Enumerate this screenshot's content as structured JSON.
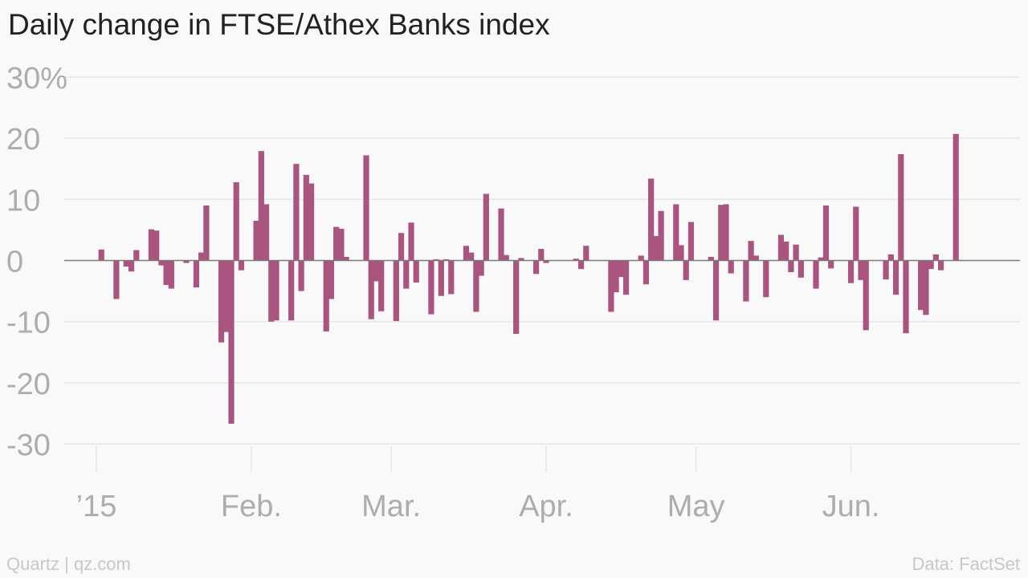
{
  "title": "Daily change in FTSE/Athex Banks index",
  "footer": {
    "credit": "Quartz | qz.com",
    "source": "Data: FactSet"
  },
  "colors": {
    "bar": "#a9557f",
    "grid": "#e6e6e6",
    "zero_line": "#7a7a7a",
    "tick_text": "#adadad",
    "background": "#f9f9f9"
  },
  "chart_data": {
    "type": "bar",
    "title": "Daily change in FTSE/Athex Banks index",
    "xlabel": "",
    "ylabel": "",
    "ylim": [
      -30,
      30
    ],
    "y_ticks": [
      {
        "value": 30,
        "label": "30%"
      },
      {
        "value": 20,
        "label": "20"
      },
      {
        "value": 10,
        "label": "10"
      },
      {
        "value": 0,
        "label": "0"
      },
      {
        "value": -10,
        "label": "-10"
      },
      {
        "value": -20,
        "label": "-20"
      },
      {
        "value": -30,
        "label": "-30"
      }
    ],
    "x_range": [
      "2015-01-01",
      "2015-06-30"
    ],
    "x_ticks": [
      {
        "date": "2015-01-01",
        "label": "’15"
      },
      {
        "date": "2015-02-01",
        "label": "Feb."
      },
      {
        "date": "2015-03-01",
        "label": "Mar."
      },
      {
        "date": "2015-04-01",
        "label": "Apr."
      },
      {
        "date": "2015-05-01",
        "label": "May"
      },
      {
        "date": "2015-06-01",
        "label": "Jun."
      }
    ],
    "grid": true,
    "points": [
      {
        "date": "2015-01-02",
        "value": 1.8
      },
      {
        "date": "2015-01-05",
        "value": -6.3
      },
      {
        "date": "2015-01-07",
        "value": -1.0
      },
      {
        "date": "2015-01-08",
        "value": -1.8
      },
      {
        "date": "2015-01-09",
        "value": 1.7
      },
      {
        "date": "2015-01-12",
        "value": 5.1
      },
      {
        "date": "2015-01-13",
        "value": 4.9
      },
      {
        "date": "2015-01-14",
        "value": -0.8
      },
      {
        "date": "2015-01-15",
        "value": -4.0
      },
      {
        "date": "2015-01-16",
        "value": -4.6
      },
      {
        "date": "2015-01-19",
        "value": -0.4
      },
      {
        "date": "2015-01-21",
        "value": -4.4
      },
      {
        "date": "2015-01-22",
        "value": 1.3
      },
      {
        "date": "2015-01-23",
        "value": 9.0
      },
      {
        "date": "2015-01-26",
        "value": -13.4
      },
      {
        "date": "2015-01-27",
        "value": -11.7
      },
      {
        "date": "2015-01-28",
        "value": -26.7
      },
      {
        "date": "2015-01-29",
        "value": 12.8
      },
      {
        "date": "2015-01-30",
        "value": -1.6
      },
      {
        "date": "2015-02-02",
        "value": 6.5
      },
      {
        "date": "2015-02-03",
        "value": 17.9
      },
      {
        "date": "2015-02-04",
        "value": 9.2
      },
      {
        "date": "2015-02-05",
        "value": -10.0
      },
      {
        "date": "2015-02-06",
        "value": -9.8
      },
      {
        "date": "2015-02-09",
        "value": -9.8
      },
      {
        "date": "2015-02-10",
        "value": 15.8
      },
      {
        "date": "2015-02-11",
        "value": -5.0
      },
      {
        "date": "2015-02-12",
        "value": 14.0
      },
      {
        "date": "2015-02-13",
        "value": 12.6
      },
      {
        "date": "2015-02-16",
        "value": -11.6
      },
      {
        "date": "2015-02-17",
        "value": -6.3
      },
      {
        "date": "2015-02-18",
        "value": 5.5
      },
      {
        "date": "2015-02-19",
        "value": 5.2
      },
      {
        "date": "2015-02-20",
        "value": 0.6
      },
      {
        "date": "2015-02-24",
        "value": 17.2
      },
      {
        "date": "2015-02-25",
        "value": -9.6
      },
      {
        "date": "2015-02-26",
        "value": -3.4
      },
      {
        "date": "2015-02-27",
        "value": -8.3
      },
      {
        "date": "2015-03-02",
        "value": -9.9
      },
      {
        "date": "2015-03-03",
        "value": 4.5
      },
      {
        "date": "2015-03-04",
        "value": -4.6
      },
      {
        "date": "2015-03-05",
        "value": 6.2
      },
      {
        "date": "2015-03-06",
        "value": -3.6
      },
      {
        "date": "2015-03-09",
        "value": -8.8
      },
      {
        "date": "2015-03-10",
        "value": 0.2
      },
      {
        "date": "2015-03-11",
        "value": -5.8
      },
      {
        "date": "2015-03-12",
        "value": 0.2
      },
      {
        "date": "2015-03-13",
        "value": -5.5
      },
      {
        "date": "2015-03-16",
        "value": 2.4
      },
      {
        "date": "2015-03-17",
        "value": 1.3
      },
      {
        "date": "2015-03-18",
        "value": -8.4
      },
      {
        "date": "2015-03-19",
        "value": -2.5
      },
      {
        "date": "2015-03-20",
        "value": 10.9
      },
      {
        "date": "2015-03-23",
        "value": 8.5
      },
      {
        "date": "2015-03-24",
        "value": 0.9
      },
      {
        "date": "2015-03-26",
        "value": -12.0
      },
      {
        "date": "2015-03-27",
        "value": 0.4
      },
      {
        "date": "2015-03-30",
        "value": -2.2
      },
      {
        "date": "2015-03-31",
        "value": 1.9
      },
      {
        "date": "2015-04-01",
        "value": -0.4
      },
      {
        "date": "2015-04-07",
        "value": 0.3
      },
      {
        "date": "2015-04-08",
        "value": -1.4
      },
      {
        "date": "2015-04-09",
        "value": 2.4
      },
      {
        "date": "2015-04-14",
        "value": -8.4
      },
      {
        "date": "2015-04-15",
        "value": -5.2
      },
      {
        "date": "2015-04-16",
        "value": -2.7
      },
      {
        "date": "2015-04-17",
        "value": -5.6
      },
      {
        "date": "2015-04-20",
        "value": 0.8
      },
      {
        "date": "2015-04-21",
        "value": -3.9
      },
      {
        "date": "2015-04-22",
        "value": 13.4
      },
      {
        "date": "2015-04-23",
        "value": 4.0
      },
      {
        "date": "2015-04-24",
        "value": 8.1
      },
      {
        "date": "2015-04-27",
        "value": 9.2
      },
      {
        "date": "2015-04-28",
        "value": 2.5
      },
      {
        "date": "2015-04-29",
        "value": -3.2
      },
      {
        "date": "2015-04-30",
        "value": 6.3
      },
      {
        "date": "2015-05-04",
        "value": 0.6
      },
      {
        "date": "2015-05-05",
        "value": -9.8
      },
      {
        "date": "2015-05-06",
        "value": 9.1
      },
      {
        "date": "2015-05-07",
        "value": 9.2
      },
      {
        "date": "2015-05-08",
        "value": -2.1
      },
      {
        "date": "2015-05-11",
        "value": -6.7
      },
      {
        "date": "2015-05-12",
        "value": 3.2
      },
      {
        "date": "2015-05-13",
        "value": 0.8
      },
      {
        "date": "2015-05-15",
        "value": -6.0
      },
      {
        "date": "2015-05-18",
        "value": 4.2
      },
      {
        "date": "2015-05-19",
        "value": 3.1
      },
      {
        "date": "2015-05-20",
        "value": -1.9
      },
      {
        "date": "2015-05-21",
        "value": 2.6
      },
      {
        "date": "2015-05-22",
        "value": -2.8
      },
      {
        "date": "2015-05-25",
        "value": -4.6
      },
      {
        "date": "2015-05-26",
        "value": 0.5
      },
      {
        "date": "2015-05-27",
        "value": 9.0
      },
      {
        "date": "2015-05-28",
        "value": -1.3
      },
      {
        "date": "2015-06-01",
        "value": -3.7
      },
      {
        "date": "2015-06-02",
        "value": 8.8
      },
      {
        "date": "2015-06-03",
        "value": -3.2
      },
      {
        "date": "2015-06-04",
        "value": -11.4
      },
      {
        "date": "2015-06-08",
        "value": -3.1
      },
      {
        "date": "2015-06-09",
        "value": 1.0
      },
      {
        "date": "2015-06-10",
        "value": -5.6
      },
      {
        "date": "2015-06-11",
        "value": 17.4
      },
      {
        "date": "2015-06-12",
        "value": -11.9
      },
      {
        "date": "2015-06-15",
        "value": -8.1
      },
      {
        "date": "2015-06-16",
        "value": -8.9
      },
      {
        "date": "2015-06-17",
        "value": -1.4
      },
      {
        "date": "2015-06-18",
        "value": 1.0
      },
      {
        "date": "2015-06-19",
        "value": -1.6
      },
      {
        "date": "2015-06-22",
        "value": 20.7
      }
    ]
  }
}
